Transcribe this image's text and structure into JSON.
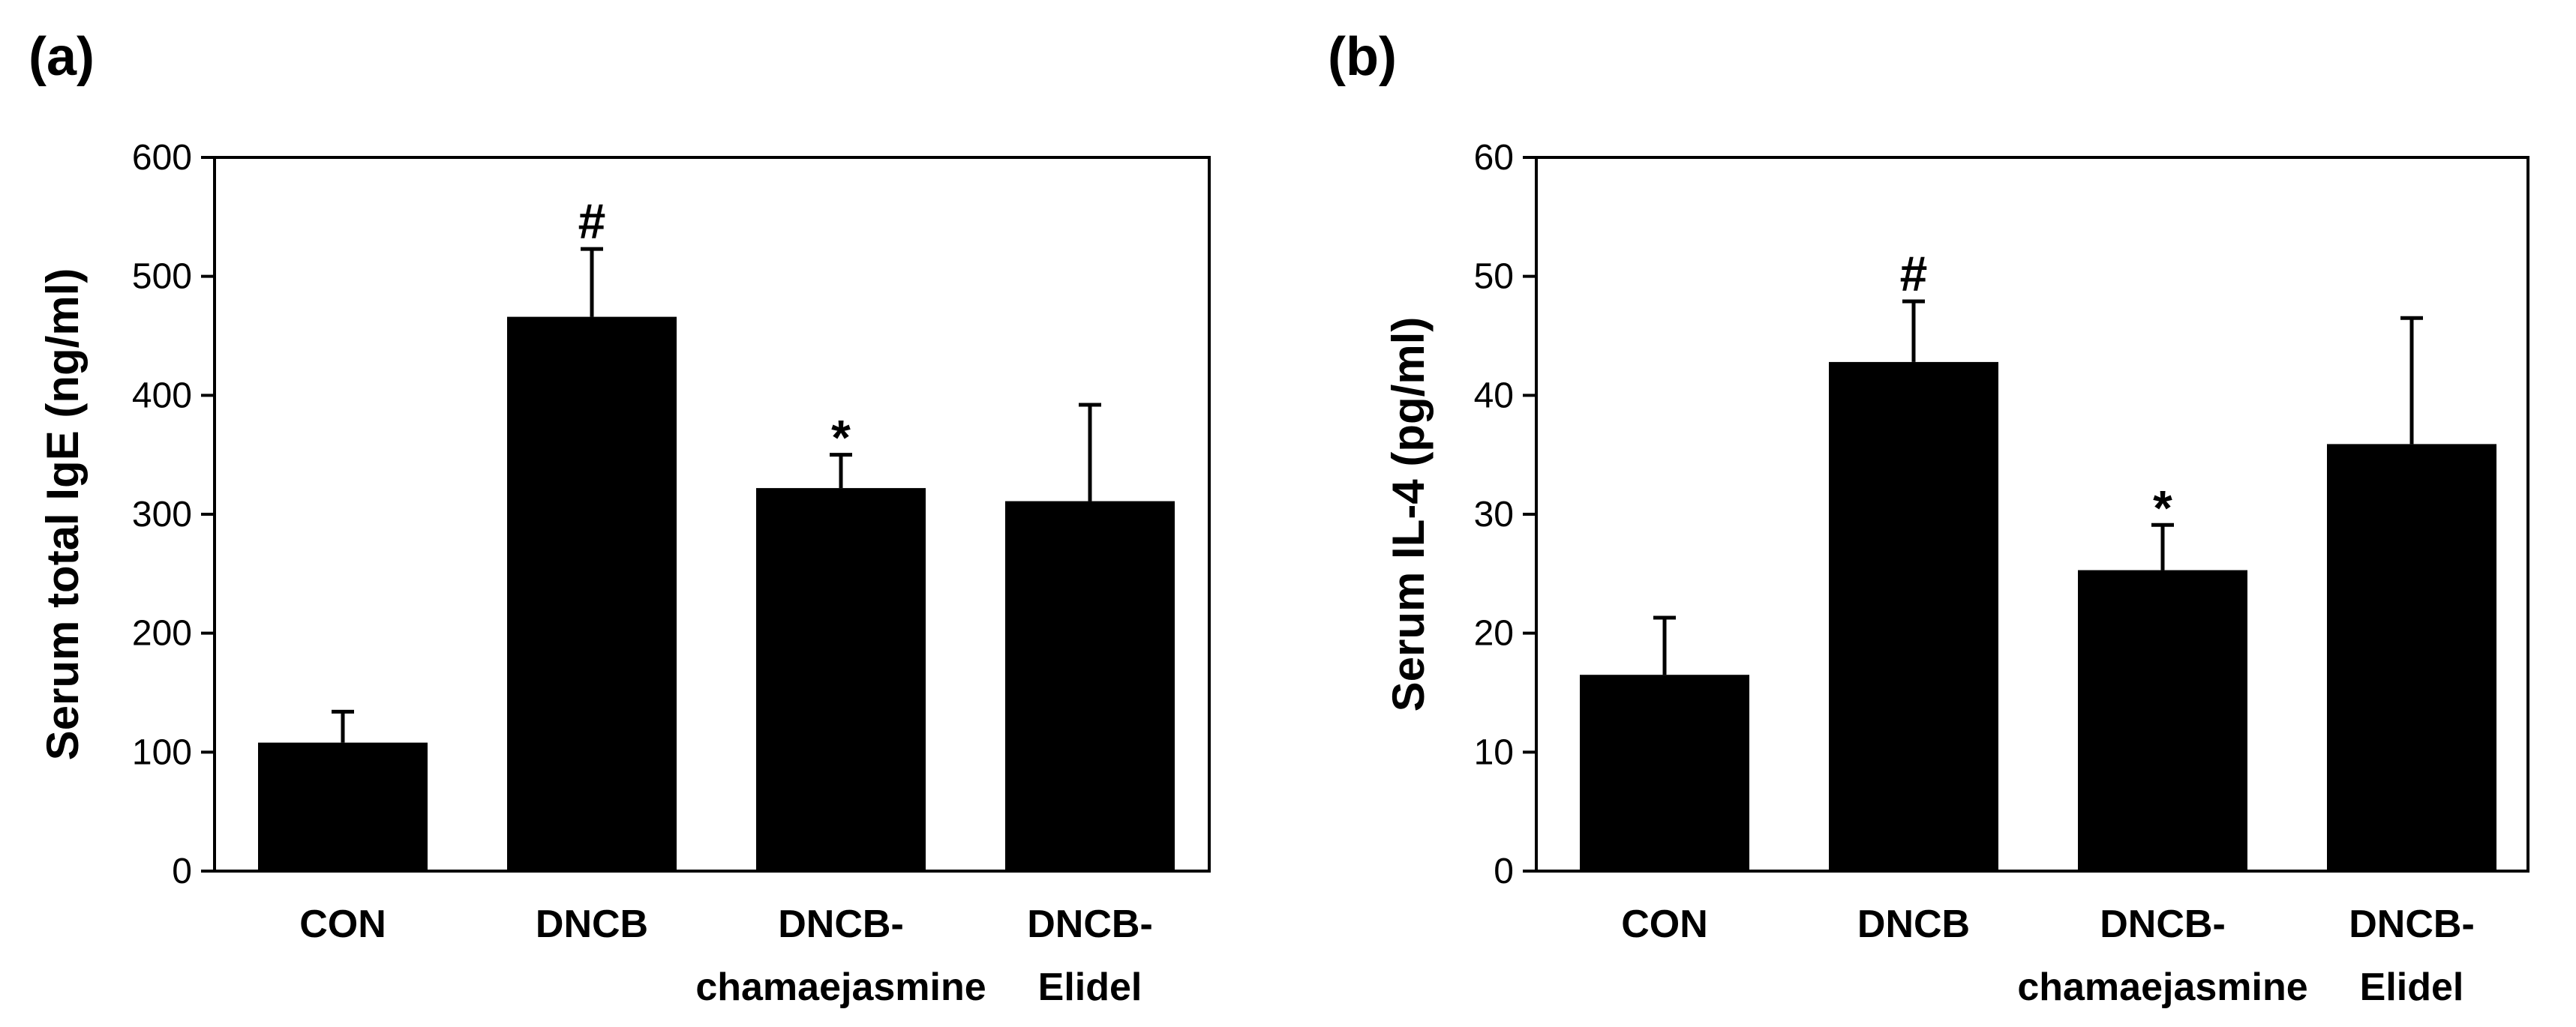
{
  "chart_data": [
    {
      "type": "bar",
      "panel_label": "(a)",
      "ylabel": "Serum total IgE (ng/ml)",
      "ylim": [
        0,
        600
      ],
      "yticks": [
        0,
        100,
        200,
        300,
        400,
        500,
        600
      ],
      "ytick_labels": [
        "0",
        "100",
        "200",
        "300",
        "400",
        "500",
        "600"
      ],
      "categories": [
        [
          "CON"
        ],
        [
          "DNCB"
        ],
        [
          "DNCB-",
          "chamaejasmine"
        ],
        [
          "DNCB-",
          "Elidel"
        ]
      ],
      "values": [
        108,
        466,
        322,
        311
      ],
      "errors": [
        26,
        57,
        28,
        81
      ],
      "annotations": [
        "",
        "#",
        "*",
        ""
      ]
    },
    {
      "type": "bar",
      "panel_label": "(b)",
      "ylabel": "Serum IL-4 (pg/ml)",
      "ylim": [
        0,
        60
      ],
      "yticks": [
        0,
        10,
        20,
        30,
        40,
        50,
        60
      ],
      "ytick_labels": [
        "0",
        "10",
        "20",
        "30",
        "40",
        "50",
        "60"
      ],
      "categories": [
        [
          "CON"
        ],
        [
          "DNCB"
        ],
        [
          "DNCB-",
          "chamaejasmine"
        ],
        [
          "DNCB-",
          "Elidel"
        ]
      ],
      "values": [
        16.5,
        42.8,
        25.3,
        35.9
      ],
      "errors": [
        4.8,
        5.1,
        3.8,
        10.6
      ],
      "annotations": [
        "",
        "#",
        "*",
        ""
      ]
    }
  ],
  "colors": {
    "bar": "#000000",
    "axis": "#000000",
    "background": "#ffffff"
  }
}
